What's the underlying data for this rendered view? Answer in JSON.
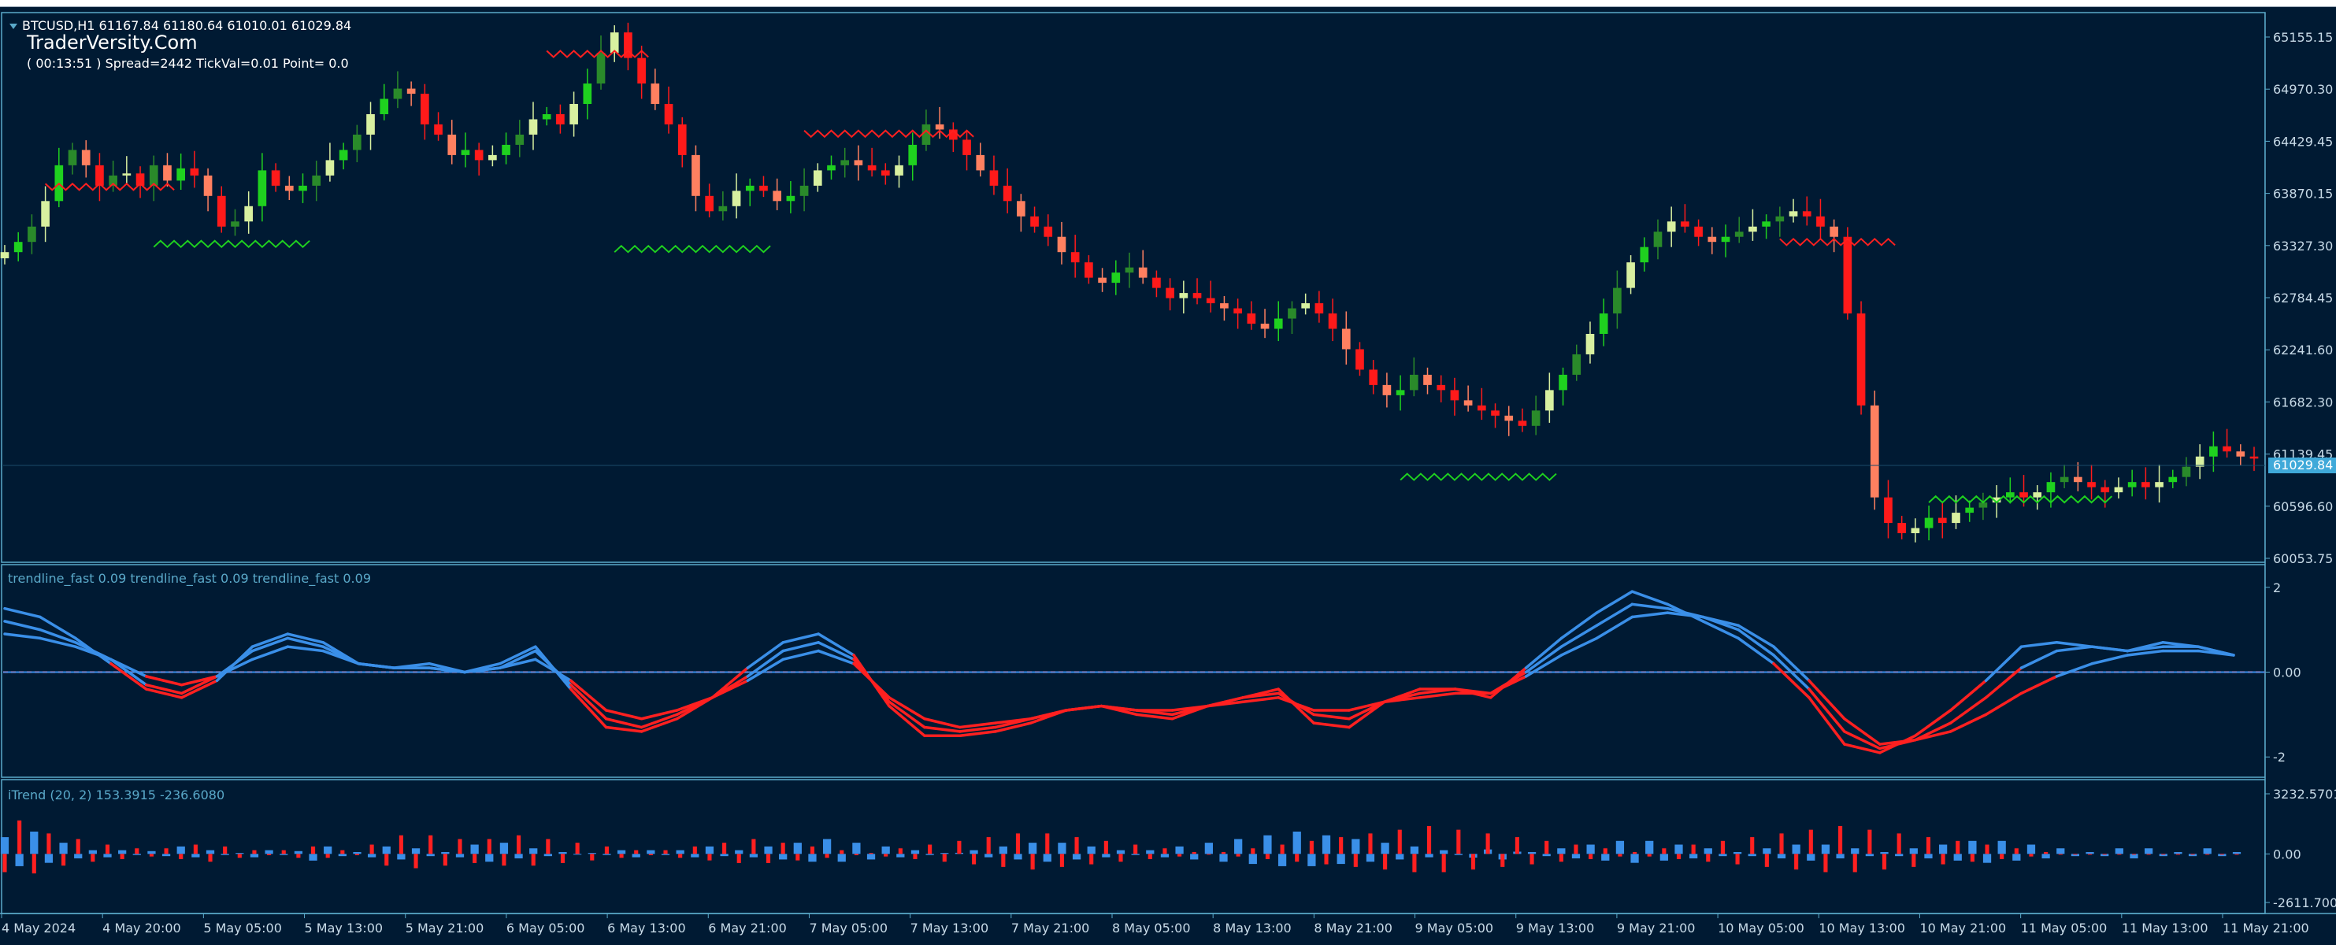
{
  "colors": {
    "background": "#001a33",
    "frame": "#5aa9c9",
    "axis_text": "#c8dbe8",
    "bull_candle": "#1fd11f",
    "bull_candle_dark": "#2a8a2a",
    "bull_candle_light": "#d8f0a0",
    "bear_candle": "#ff1a1a",
    "bear_candle_light": "#ff8060",
    "trendline_up": "#3a8fe8",
    "trendline_down": "#ff2020",
    "zero_line_red": "#ff2020",
    "zero_line_blue": "#3a8fe8",
    "histogram_up": "#3a8fe8",
    "histogram_down": "#ff2020",
    "signal_up": "#1fd11f",
    "signal_down": "#ff2020",
    "price_tag": "#3fa9d9"
  },
  "header": {
    "symbol_line": "BTCUSD,H1  61167.84 61180.64 61010.01 61029.84",
    "watermark": "TraderVersity.Com",
    "info_line": "( 00:13:51 )  Spread=2442  TickVal=0.01  Point= 0.0",
    "collapse_icon": "triangle-down-icon"
  },
  "indicator_labels": {
    "trendline": "trendline_fast 0.09  trendline_fast 0.09  trendline_fast 0.09",
    "itrend": "iTrend (20, 2) 153.3915 -236.6080"
  },
  "current_price": "61029.84",
  "chart_data": [
    {
      "type": "candlestick",
      "title": "BTCUSD,H1",
      "y_ticks": [
        "65155.15",
        "64970.30",
        "64429.45",
        "63870.15",
        "63327.30",
        "62784.45",
        "62241.60",
        "61682.30",
        "61139.45",
        "60596.60",
        "60053.75"
      ],
      "ylim": [
        60053.75,
        65155.15
      ],
      "x_ticks": [
        "4 May 2024",
        "4 May 20:00",
        "5 May 05:00",
        "5 May 13:00",
        "5 May 21:00",
        "6 May 05:00",
        "6 May 13:00",
        "6 May 21:00",
        "7 May 05:00",
        "7 May 13:00",
        "7 May 21:00",
        "8 May 05:00",
        "8 May 13:00",
        "8 May 21:00",
        "9 May 05:00",
        "9 May 13:00",
        "9 May 21:00",
        "10 May 05:00",
        "10 May 13:00",
        "10 May 21:00",
        "11 May 05:00",
        "11 May 13:00",
        "11 May 21:00"
      ],
      "series": [
        {
          "close": [
            63050,
            63150,
            63300,
            63550,
            63900,
            64050,
            63900,
            63700,
            63800,
            63820,
            63700,
            63900,
            63750,
            63870,
            63800,
            63600,
            63300,
            63350,
            63500,
            63850,
            63700,
            63650,
            63700,
            63800,
            63950,
            64050,
            64200,
            64400,
            64550,
            64650,
            64600,
            64300,
            64200,
            64000,
            64050,
            63950,
            64000,
            64100,
            64200,
            64350,
            64400,
            64300,
            64500,
            64700,
            65000,
            65200,
            64950,
            64700,
            64500,
            64300,
            64000,
            63600,
            63450,
            63500,
            63650,
            63700,
            63650,
            63550,
            63600,
            63700,
            63850,
            63900,
            63950,
            63900,
            63850,
            63800,
            63900,
            64100,
            64300,
            64250,
            64150,
            64000,
            63850,
            63700,
            63550,
            63400,
            63300,
            63200,
            63050,
            62950,
            62800,
            62750,
            62850,
            62900,
            62800,
            62700,
            62600,
            62650,
            62600,
            62550,
            62500,
            62450,
            62350,
            62300,
            62400,
            62500,
            62550,
            62450,
            62300,
            62100,
            61900,
            61750,
            61650,
            61700,
            61850,
            61750,
            61700,
            61600,
            61550,
            61500,
            61450,
            61400,
            61350,
            61500,
            61700,
            61850,
            62050,
            62250,
            62450,
            62700,
            62950,
            63100,
            63250,
            63350,
            63300,
            63200,
            63150,
            63200,
            63250,
            63300,
            63350,
            63400,
            63450,
            63400,
            63300,
            63200,
            62450,
            61550,
            60650,
            60400,
            60300,
            60350,
            60450,
            60400,
            60500,
            60550,
            60600,
            60650,
            60700,
            60650,
            60700,
            60800,
            60850,
            60800,
            60750,
            60700,
            60750,
            60800,
            60750,
            60800,
            60850,
            60950,
            61050,
            61150,
            61100,
            61050,
            61029.84
          ]
        }
      ]
    },
    {
      "type": "line",
      "title": "trendline_fast 0.09",
      "y_ticks": [
        "2",
        "0.00",
        "-2"
      ],
      "ylim": [
        -2.2,
        2.2
      ],
      "series": [
        {
          "name": "trendline_fast 0.09",
          "values": [
            1.5,
            1.3,
            0.8,
            0.2,
            -0.4,
            -0.6,
            -0.2,
            0.6,
            0.9,
            0.7,
            0.2,
            0.1,
            0.2,
            0.0,
            0.2,
            0.6,
            -0.4,
            -1.3,
            -1.4,
            -1.1,
            -0.6,
            0.1,
            0.7,
            0.9,
            0.4,
            -0.8,
            -1.5,
            -1.5,
            -1.4,
            -1.2,
            -0.9,
            -0.8,
            -1.0,
            -1.1,
            -0.8,
            -0.6,
            -0.4,
            -1.2,
            -1.3,
            -0.7,
            -0.4,
            -0.4,
            -0.6,
            0.1,
            0.8,
            1.4,
            1.9,
            1.6,
            1.2,
            0.8,
            0.2,
            -0.6,
            -1.7,
            -1.9,
            -1.5,
            -0.9,
            -0.2,
            0.6,
            0.7,
            0.6,
            0.5,
            0.7,
            0.6,
            0.4
          ]
        },
        {
          "name": "trendline_fast 0.09",
          "values": [
            1.2,
            1.0,
            0.7,
            0.3,
            -0.3,
            -0.5,
            -0.1,
            0.5,
            0.8,
            0.6,
            0.2,
            0.1,
            0.1,
            0.0,
            0.1,
            0.5,
            -0.3,
            -1.1,
            -1.3,
            -1.0,
            -0.6,
            -0.1,
            0.5,
            0.7,
            0.3,
            -0.7,
            -1.3,
            -1.4,
            -1.3,
            -1.1,
            -0.9,
            -0.8,
            -0.9,
            -1.0,
            -0.8,
            -0.6,
            -0.5,
            -1.0,
            -1.1,
            -0.7,
            -0.5,
            -0.4,
            -0.5,
            0.0,
            0.6,
            1.1,
            1.6,
            1.5,
            1.3,
            1.0,
            0.4,
            -0.4,
            -1.4,
            -1.8,
            -1.6,
            -1.2,
            -0.6,
            0.1,
            0.5,
            0.6,
            0.5,
            0.6,
            0.6,
            0.4
          ]
        },
        {
          "name": "trendline_fast 0.09",
          "values": [
            0.9,
            0.8,
            0.6,
            0.3,
            -0.1,
            -0.3,
            -0.1,
            0.3,
            0.6,
            0.5,
            0.2,
            0.1,
            0.1,
            0.0,
            0.1,
            0.3,
            -0.2,
            -0.9,
            -1.1,
            -0.9,
            -0.6,
            -0.2,
            0.3,
            0.5,
            0.2,
            -0.6,
            -1.1,
            -1.3,
            -1.2,
            -1.1,
            -0.9,
            -0.8,
            -0.9,
            -0.9,
            -0.8,
            -0.7,
            -0.6,
            -0.9,
            -0.9,
            -0.7,
            -0.6,
            -0.5,
            -0.5,
            -0.1,
            0.4,
            0.8,
            1.3,
            1.4,
            1.3,
            1.1,
            0.6,
            -0.2,
            -1.1,
            -1.7,
            -1.6,
            -1.4,
            -1.0,
            -0.5,
            -0.1,
            0.2,
            0.4,
            0.5,
            0.5,
            0.4
          ]
        }
      ]
    },
    {
      "type": "bar",
      "title": "iTrend (20, 2)",
      "y_ticks": [
        "3232.5701",
        "0.00",
        "-2611.7001"
      ],
      "ylim": [
        -2611.7001,
        3232.5701
      ],
      "series": [
        {
          "name": "up",
          "values": [
            900,
            1100,
            1200,
            800,
            600,
            400,
            200,
            300,
            200,
            100,
            150,
            200,
            400,
            300,
            200,
            100,
            50,
            300,
            200,
            100,
            150,
            600,
            400,
            200,
            100,
            300,
            400,
            500,
            300,
            200,
            100,
            300,
            500,
            700,
            600,
            400,
            300,
            200,
            100,
            50,
            50,
            100,
            200,
            300,
            200,
            100,
            200,
            300,
            400,
            200,
            200,
            300,
            400,
            500,
            600,
            700,
            800,
            700,
            600,
            500,
            400,
            300,
            200,
            100,
            50,
            -100,
            200,
            300,
            400,
            500,
            600,
            700,
            600,
            500,
            400,
            300,
            200,
            100,
            200,
            300,
            400,
            500,
            600,
            700,
            800,
            900,
            1000,
            1100,
            1200,
            1100,
            1000,
            900,
            800,
            700,
            600,
            500,
            400,
            300,
            200,
            100,
            -200,
            -400,
            -300,
            -200,
            100,
            200,
            300,
            400,
            500,
            600,
            700,
            800,
            700,
            600,
            500,
            400,
            300,
            200,
            100,
            200,
            300,
            400,
            500,
            600,
            500,
            400,
            300,
            200,
            100,
            200,
            300,
            400,
            500,
            600,
            700,
            800,
            700,
            600,
            500,
            400,
            300,
            200,
            100,
            200,
            300,
            400,
            300,
            200,
            100,
            200,
            300,
            200,
            100
          ]
        },
        {
          "name": "down",
          "values": [
            -1400,
            -1800,
            -1500,
            -1100,
            -900,
            -800,
            -600,
            -500,
            -400,
            -300,
            -200,
            -300,
            -400,
            -500,
            -600,
            -400,
            -300,
            -200,
            -100,
            -200,
            -300,
            -400,
            -300,
            -200,
            -100,
            -500,
            -900,
            -1000,
            -1100,
            -1000,
            -900,
            -800,
            -700,
            -800,
            -900,
            -1000,
            -900,
            -800,
            -700,
            -600,
            -500,
            -400,
            -300,
            -200,
            -100,
            -200,
            -300,
            -400,
            -500,
            -600,
            -700,
            -800,
            -700,
            -600,
            -500,
            -400,
            -300,
            -200,
            -100,
            -50,
            -200,
            -300,
            -400,
            -500,
            -600,
            -700,
            -800,
            -900,
            -1000,
            -1100,
            -1200,
            -1100,
            -1000,
            -900,
            -800,
            -700,
            -600,
            -500,
            -400,
            -300,
            -200,
            -100,
            -50,
            -100,
            -200,
            -300,
            -400,
            -500,
            -600,
            -700,
            -800,
            -900,
            -1000,
            -1100,
            -1200,
            -1300,
            -1400,
            -1500,
            -1400,
            -1300,
            -1200,
            -1100,
            -1000,
            -900,
            -800,
            -700,
            -600,
            -500,
            -400,
            -300,
            -200,
            -100,
            -200,
            -300,
            -400,
            -500,
            -600,
            -700,
            -800,
            -900,
            -1000,
            -1100,
            -1200,
            -1300,
            -1400,
            -1500,
            -1400,
            -1300,
            -1200,
            -1100,
            -1000,
            -900,
            -800,
            -700,
            -600,
            -500,
            -400,
            -300,
            -200,
            -100
          ]
        }
      ]
    }
  ]
}
